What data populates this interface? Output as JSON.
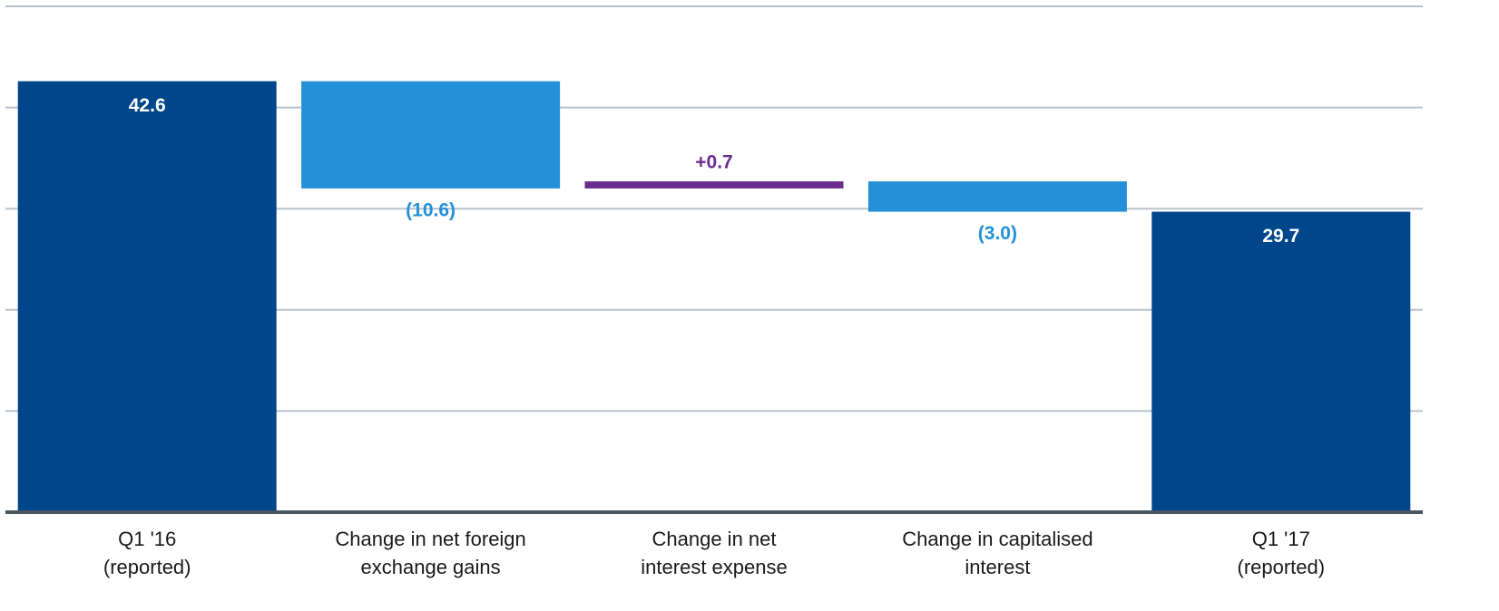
{
  "chart_data": {
    "type": "waterfall",
    "categories": [
      [
        "Q1 '16",
        "(reported)"
      ],
      [
        "Change in net foreign",
        "exchange gains"
      ],
      [
        "Change in net",
        "interest expense"
      ],
      [
        "Change in capitalised",
        "interest"
      ],
      [
        "Q1 '17",
        "(reported)"
      ]
    ],
    "values": [
      42.6,
      -10.6,
      0.7,
      -3.0,
      29.7
    ],
    "value_labels": [
      "42.6",
      "(10.6)",
      "+0.7",
      "(3.0)",
      "29.7"
    ],
    "measure": [
      "absolute",
      "relative",
      "relative",
      "relative",
      "absolute"
    ],
    "colors": [
      "#00468b",
      "#2490d8",
      "#6b2c8f",
      "#2490d8",
      "#00468b"
    ],
    "ylim": [
      0,
      50
    ],
    "yticks": [
      0,
      10,
      20,
      30,
      40,
      50
    ],
    "grid": true
  }
}
